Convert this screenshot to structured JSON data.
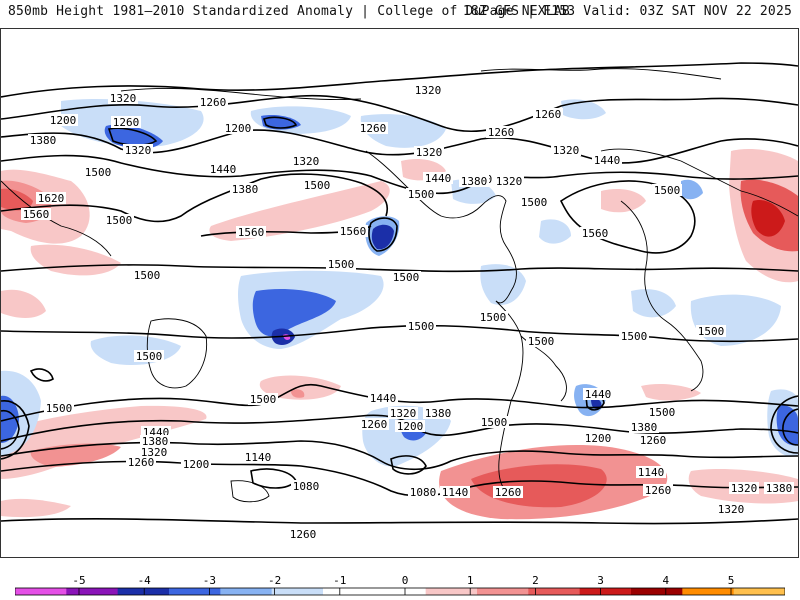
{
  "header": {
    "left_title": "850mb Height 1981–2010 Standardized Anomaly | College of DuPage NEXLAB",
    "right_title": "18Z GFS | F153 Valid: 03Z SAT NOV 22 2025"
  },
  "map": {
    "projection": "global equirectangular",
    "contour_labels": [
      "1320",
      "1260",
      "1200",
      "1320",
      "1380",
      "1260",
      "1320",
      "1260",
      "1200",
      "1320",
      "1260",
      "1320",
      "1440",
      "1260",
      "1320",
      "1500",
      "1620",
      "1560",
      "1500",
      "1380",
      "1440",
      "1500",
      "1500",
      "1440",
      "1380",
      "1320",
      "1500",
      "1560",
      "1440",
      "1500",
      "1560",
      "1560",
      "1500",
      "1500",
      "1500",
      "1500",
      "1500",
      "1500",
      "1500",
      "1500",
      "1500",
      "1500",
      "1500",
      "1440",
      "1320",
      "1380",
      "1260",
      "1200",
      "1440",
      "1500",
      "1380",
      "1260",
      "1200",
      "1500",
      "1440",
      "1380",
      "1320",
      "1260",
      "1200",
      "1140",
      "1080",
      "1080",
      "1140",
      "1260",
      "1140",
      "1260",
      "1320",
      "1380",
      "1320",
      "1260"
    ]
  },
  "colorbar": {
    "ticks": [
      "-5",
      "-4",
      "-3",
      "-2",
      "-1",
      "0",
      "1",
      "2",
      "3",
      "4",
      "5"
    ],
    "colors": [
      "#e44fe6",
      "#8a14b8",
      "#1b2fa8",
      "#3c66e0",
      "#87b2f2",
      "#c9def8",
      "#ffffff",
      "#ffffff",
      "#f8c7c7",
      "#f29292",
      "#e65a5a",
      "#cc1a1a",
      "#9a0000",
      "#ff8c00",
      "#ffc04d"
    ]
  }
}
